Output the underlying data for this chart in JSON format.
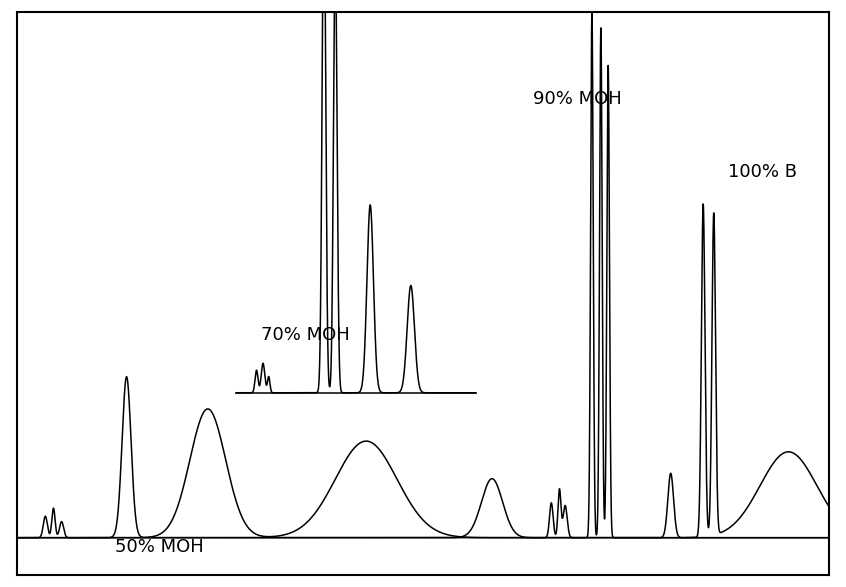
{
  "bg_color": "#ffffff",
  "line_color": "#000000",
  "line_width": 1.1,
  "labels": {
    "50moh": "50% MOH",
    "70moh": "70% MOH",
    "90moh": "90% MOH",
    "100b": "100% B"
  },
  "label_fontsize": 13,
  "xlim": [
    0,
    100
  ],
  "ylim": [
    0,
    1.05
  ],
  "baseline": 0.07
}
